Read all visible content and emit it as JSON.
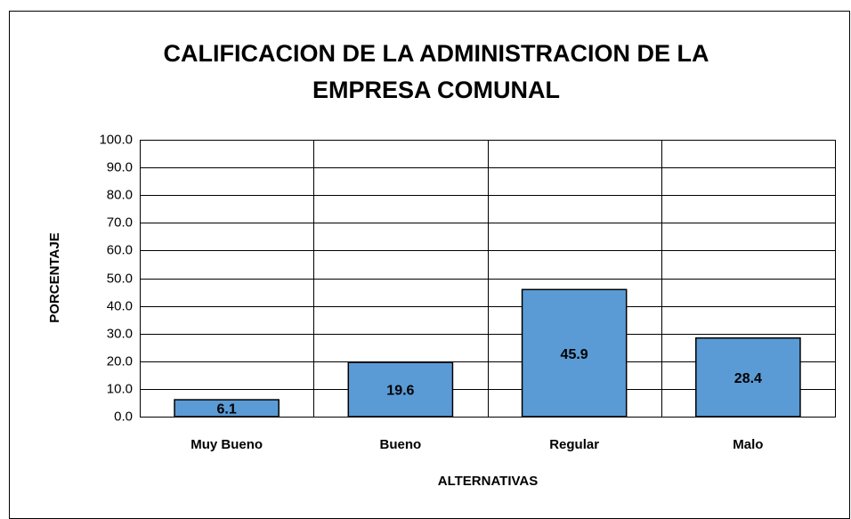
{
  "chart_data": {
    "type": "bar",
    "title": [
      "CALIFICACION DE LA ADMINISTRACION DE LA",
      "EMPRESA COMUNAL"
    ],
    "x_label": "ALTERNATIVAS",
    "y_label": "PORCENTAJE",
    "categories": [
      "Muy Bueno",
      "Bueno",
      "Regular",
      "Malo"
    ],
    "values": [
      6.1,
      19.6,
      45.9,
      28.4
    ],
    "color": "#5b9bd5",
    "ylim": [
      0,
      100
    ],
    "yticks": [
      {
        "value": 0,
        "label": "0.0"
      },
      {
        "value": 10,
        "label": "10.0"
      },
      {
        "value": 20,
        "label": "20.0"
      },
      {
        "value": 30,
        "label": "30.0"
      },
      {
        "value": 40,
        "label": "40.0"
      },
      {
        "value": 50,
        "label": "50.0"
      },
      {
        "value": 60,
        "label": "60.0"
      },
      {
        "value": 70,
        "label": "70.0"
      },
      {
        "value": 80,
        "label": "80.0"
      },
      {
        "value": 90,
        "label": "90.0"
      },
      {
        "value": 100,
        "label": "100.0"
      }
    ],
    "grid": true
  }
}
